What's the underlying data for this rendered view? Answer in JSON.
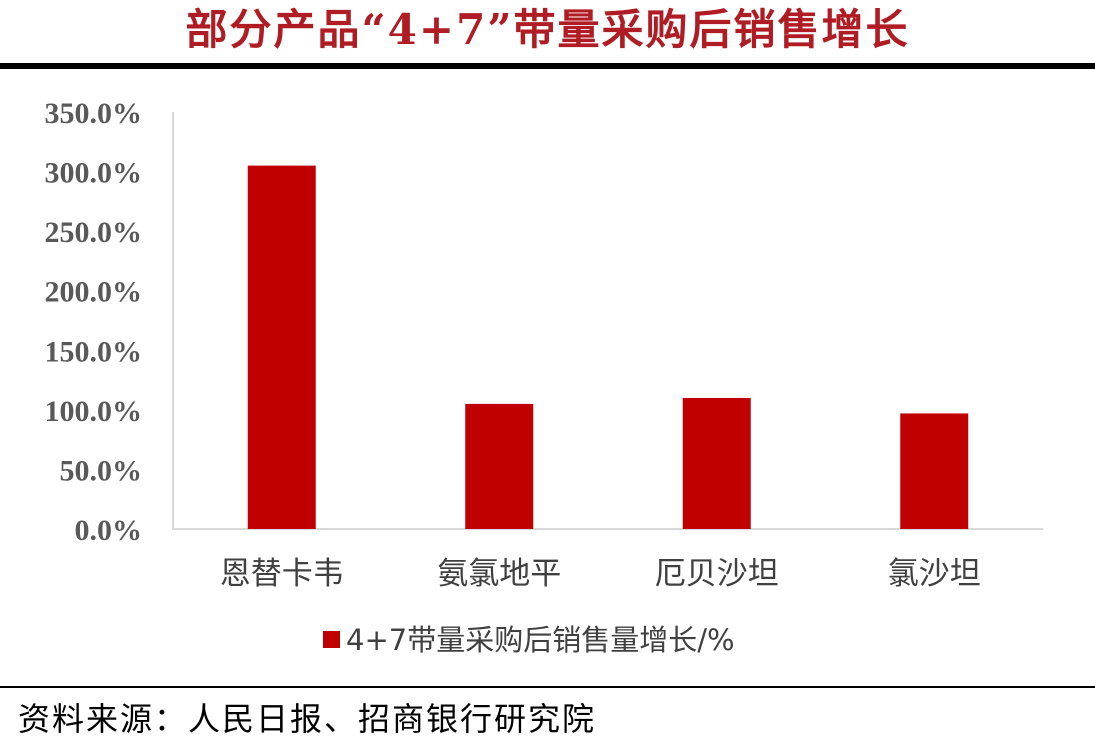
{
  "title": "部分产品“4+7”带量采购后销售增长",
  "source": "资料来源：人民日报、招商银行研究院",
  "chart_data": {
    "type": "bar",
    "categories": [
      "恩替卡韦",
      "氨氯地平",
      "厄贝沙坦",
      "氯沙坦"
    ],
    "series": [
      {
        "name": "4+7带量采购后销售量增长/%",
        "values": [
          305.0,
          105.0,
          110.0,
          97.0
        ],
        "color": "#c00000"
      }
    ],
    "ylim": [
      0,
      350
    ],
    "ytick_labels": [
      "0.0%",
      "50.0%",
      "100.0%",
      "150.0%",
      "200.0%",
      "250.0%",
      "300.0%",
      "350.0%"
    ],
    "grid": false,
    "legend_position": "bottom",
    "xlabel": "",
    "ylabel": ""
  }
}
